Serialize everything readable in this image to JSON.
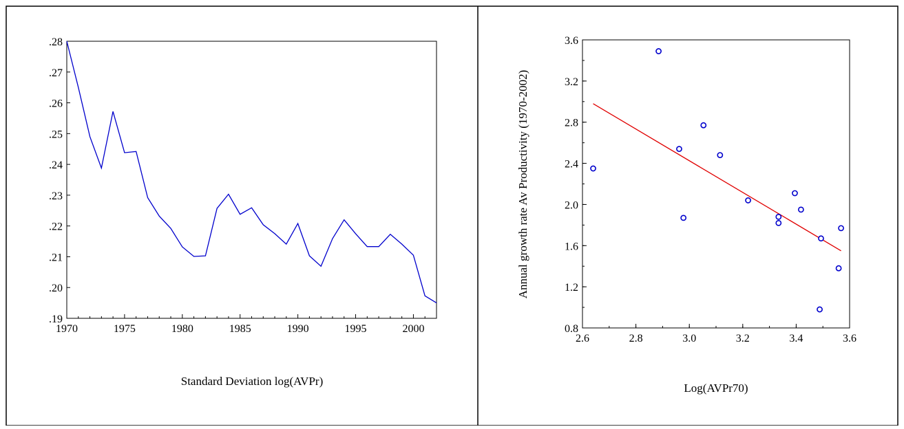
{
  "colors": {
    "line": "#0000cc",
    "points": "#0000cc",
    "fit": "#e00000",
    "frame": "#000000"
  },
  "chart_data": [
    {
      "type": "line",
      "title": "",
      "xlabel": "Standard Deviation log(AVPr)",
      "ylabel": "",
      "xlim": [
        1970,
        2002
      ],
      "ylim": [
        0.19,
        0.28
      ],
      "grid": false,
      "x_ticks": [
        1970,
        1975,
        1980,
        1985,
        1990,
        1995,
        2000
      ],
      "x_tick_labels": [
        "1970",
        "1975",
        "1980",
        "1985",
        "1990",
        "1995",
        "2000"
      ],
      "y_ticks": [
        0.19,
        0.2,
        0.21,
        0.22,
        0.23,
        0.24,
        0.25,
        0.26,
        0.27,
        0.28
      ],
      "y_tick_labels": [
        ".19",
        ".20",
        ".21",
        ".22",
        ".23",
        ".24",
        ".25",
        ".26",
        ".27",
        ".28"
      ],
      "x": [
        1970,
        1971,
        1972,
        1973,
        1974,
        1975,
        1976,
        1977,
        1978,
        1979,
        1980,
        1981,
        1982,
        1983,
        1984,
        1985,
        1986,
        1987,
        1988,
        1989,
        1990,
        1991,
        1992,
        1993,
        1994,
        1995,
        1996,
        1997,
        1998,
        1999,
        2000,
        2001,
        2002
      ],
      "y": [
        0.28,
        0.265,
        0.249,
        0.2388,
        0.2572,
        0.2438,
        0.2442,
        0.2292,
        0.2232,
        0.2192,
        0.2132,
        0.2101,
        0.2103,
        0.2257,
        0.2303,
        0.2238,
        0.2259,
        0.2204,
        0.2175,
        0.2141,
        0.2208,
        0.2103,
        0.2069,
        0.2159,
        0.222,
        0.2175,
        0.2133,
        0.2133,
        0.2173,
        0.2141,
        0.2105,
        0.1973,
        0.195
      ]
    },
    {
      "type": "scatter",
      "title": "",
      "xlabel": "Log(AVPr70)",
      "ylabel": "Annual growth rate Av Productivity (1970-2002)",
      "xlim": [
        2.6,
        3.6
      ],
      "ylim": [
        0.8,
        3.6
      ],
      "grid": false,
      "x_ticks": [
        2.6,
        2.8,
        3.0,
        3.2,
        3.4,
        3.6
      ],
      "x_tick_labels": [
        "2.6",
        "2.8",
        "3.0",
        "3.2",
        "3.4",
        "3.6"
      ],
      "y_ticks": [
        0.8,
        1.2,
        1.6,
        2.0,
        2.4,
        2.8,
        3.2,
        3.6
      ],
      "y_tick_labels": [
        "0.8",
        "1.2",
        "1.6",
        "2.0",
        "2.4",
        "2.8",
        "3.2",
        "3.6"
      ],
      "points": [
        {
          "x": 2.64,
          "y": 2.35
        },
        {
          "x": 2.885,
          "y": 3.49
        },
        {
          "x": 2.962,
          "y": 2.54
        },
        {
          "x": 2.978,
          "y": 1.87
        },
        {
          "x": 3.053,
          "y": 2.77
        },
        {
          "x": 3.115,
          "y": 2.48
        },
        {
          "x": 3.22,
          "y": 2.04
        },
        {
          "x": 3.334,
          "y": 1.88
        },
        {
          "x": 3.334,
          "y": 1.82
        },
        {
          "x": 3.395,
          "y": 2.11
        },
        {
          "x": 3.418,
          "y": 1.95
        },
        {
          "x": 3.488,
          "y": 0.98
        },
        {
          "x": 3.493,
          "y": 1.67
        },
        {
          "x": 3.559,
          "y": 1.38
        },
        {
          "x": 3.568,
          "y": 1.77
        }
      ],
      "fit_line": {
        "x": [
          2.64,
          3.568
        ],
        "y": [
          2.98,
          1.55
        ]
      }
    }
  ]
}
